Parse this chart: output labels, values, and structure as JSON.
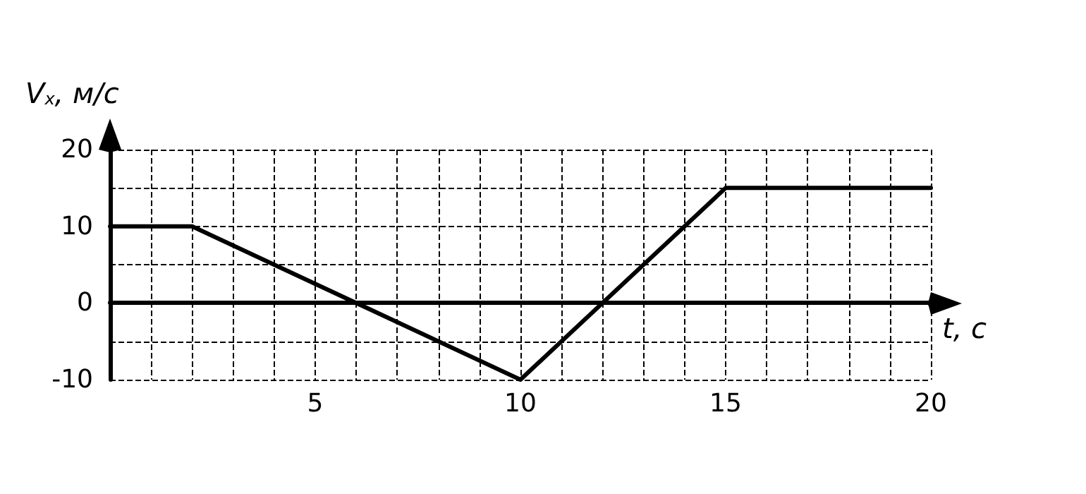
{
  "chart_data": {
    "type": "line",
    "xlabel": "t, с",
    "ylabel": "V$_{x}$, м/с",
    "x": [
      0,
      2,
      10,
      15,
      20
    ],
    "series": [
      {
        "color": "#000000",
        "values": [
          10,
          10,
          -10,
          15,
          15
        ]
      }
    ],
    "xlim": [
      0,
      20
    ],
    "ylim": [
      -10,
      20
    ],
    "xticks": [
      {
        "value": 0,
        "label": null
      },
      {
        "value": 1,
        "label": null
      },
      {
        "value": 2,
        "label": null
      },
      {
        "value": 3,
        "label": null
      },
      {
        "value": 4,
        "label": null
      },
      5,
      {
        "value": 6,
        "label": null
      },
      {
        "value": 7,
        "label": null
      },
      {
        "value": 8,
        "label": null
      },
      {
        "value": 9,
        "label": null
      },
      10,
      {
        "value": 11,
        "label": null
      },
      {
        "value": 12,
        "label": null
      },
      {
        "value": 13,
        "label": null
      },
      {
        "value": 14,
        "label": null
      },
      15,
      {
        "value": 16,
        "label": null
      },
      {
        "value": 17,
        "label": null
      },
      {
        "value": 18,
        "label": null
      },
      {
        "value": 19,
        "label": null
      },
      20
    ],
    "yticks": [
      -10,
      {
        "value": -5,
        "label": null
      },
      0,
      {
        "value": 5,
        "label": null
      },
      10,
      {
        "value": 15,
        "label": null
      },
      20
    ],
    "grid": true,
    "marker": "none",
    "line_style": "solid"
  }
}
